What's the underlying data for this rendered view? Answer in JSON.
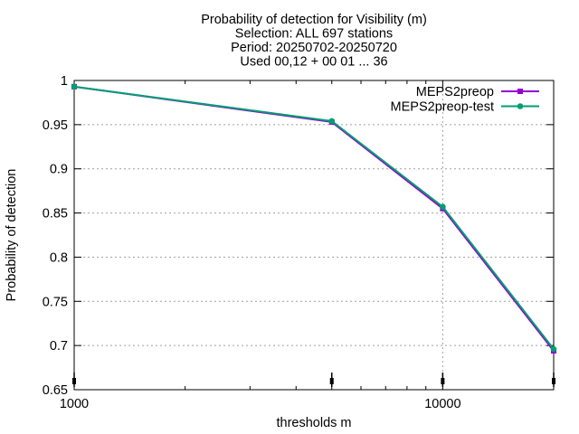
{
  "chart_data": {
    "type": "line",
    "title_lines": [
      "Probability of detection  for Visibility (m)",
      "Selection: ALL    697 stations",
      "Period: 20250702-20250720",
      "Used 00,12 + 00 01 ... 36"
    ],
    "xlabel": "thresholds m",
    "ylabel": "Probability of detection",
    "x_scale": "log",
    "xlim": [
      1000,
      20000
    ],
    "ylim": [
      0.65,
      1.0
    ],
    "x_ticks": [
      {
        "value": 1000,
        "label": "1000"
      },
      {
        "value": 10000,
        "label": "10000"
      }
    ],
    "y_ticks": [
      {
        "value": 0.65,
        "label": "0.65"
      },
      {
        "value": 0.7,
        "label": "0.7"
      },
      {
        "value": 0.75,
        "label": "0.75"
      },
      {
        "value": 0.8,
        "label": "0.8"
      },
      {
        "value": 0.85,
        "label": "0.85"
      },
      {
        "value": 0.9,
        "label": "0.9"
      },
      {
        "value": 0.95,
        "label": "0.95"
      },
      {
        "value": 1.0,
        "label": "1"
      }
    ],
    "grid": true,
    "legend_position": "top-right",
    "error_bar_x": [
      1000,
      5000,
      10000,
      20000
    ],
    "series": [
      {
        "name": "MEPS2preop",
        "color": "#9400d3",
        "marker": "square",
        "x": [
          1000,
          5000,
          10000,
          20000
        ],
        "y": [
          0.993,
          0.953,
          0.855,
          0.694
        ]
      },
      {
        "name": "MEPS2preop-test",
        "color": "#009e73",
        "marker": "circle",
        "x": [
          1000,
          5000,
          10000,
          20000
        ],
        "y": [
          0.993,
          0.954,
          0.857,
          0.696
        ]
      }
    ]
  }
}
